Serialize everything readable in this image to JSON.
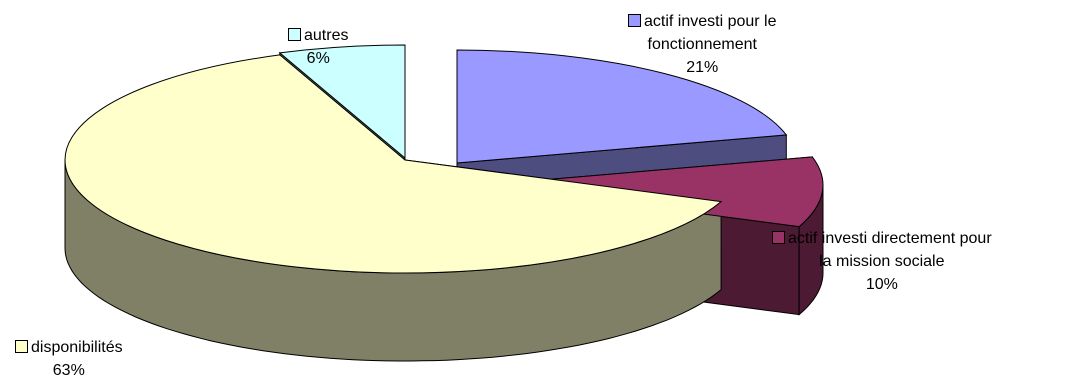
{
  "chart_data": {
    "type": "pie",
    "three_d": true,
    "title": "",
    "slices": [
      {
        "line1": "actif investi pour le",
        "line2": "fonctionnement",
        "value": 21,
        "pct_label": "21%",
        "top_color": "#9999ff",
        "side_color": "#4d4d80"
      },
      {
        "line1": "actif investi directement pour",
        "line2": "la mission sociale",
        "value": 10,
        "pct_label": "10%",
        "top_color": "#993366",
        "side_color": "#4d1a33"
      },
      {
        "line1": "disponibilités",
        "line2": "",
        "value": 63,
        "pct_label": "63%",
        "top_color": "#ffffcc",
        "side_color": "#808066"
      },
      {
        "line1": "autres",
        "line2": "",
        "value": 6,
        "pct_label": "6%",
        "top_color": "#ccffff",
        "side_color": "#668080"
      }
    ]
  }
}
